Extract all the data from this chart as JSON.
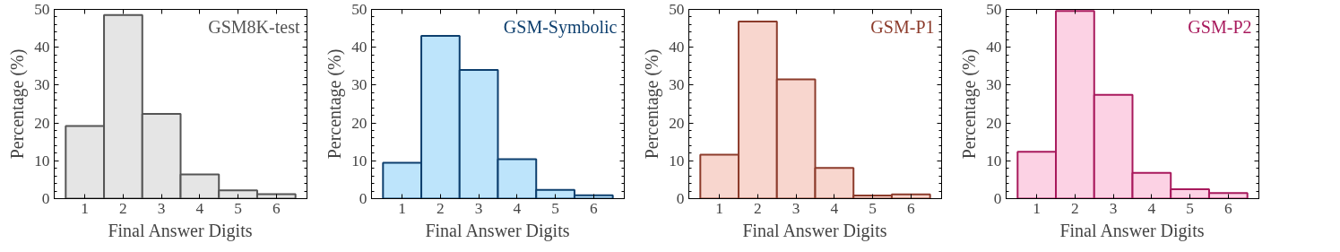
{
  "chart_data": [
    {
      "type": "bar",
      "title": "GSM8K-test",
      "xlabel": "Final Answer Digits",
      "ylabel": "Percentage (%)",
      "x": [
        1,
        2,
        3,
        4,
        5,
        6
      ],
      "xlim": [
        0.2,
        6.8
      ],
      "xticks": [
        1,
        2,
        3,
        4,
        5,
        6
      ],
      "ylim": [
        0,
        50
      ],
      "yticks": [
        0,
        10,
        20,
        30,
        40,
        50
      ],
      "grid": false,
      "series": [
        {
          "color": "#e5e5e5",
          "values": [
            19.2,
            48.5,
            22.4,
            6.4,
            2.2,
            1.2
          ]
        }
      ]
    },
    {
      "type": "bar",
      "title": "GSM-Symbolic",
      "xlabel": "Final Answer Digits",
      "ylabel": "Percentage (%)",
      "x": [
        1,
        2,
        3,
        4,
        5,
        6
      ],
      "xlim": [
        0.2,
        6.8
      ],
      "xticks": [
        1,
        2,
        3,
        4,
        5,
        6
      ],
      "ylim": [
        0,
        50
      ],
      "yticks": [
        0,
        10,
        20,
        30,
        40,
        50
      ],
      "grid": false,
      "series": [
        {
          "color": "#bde4fb",
          "values": [
            9.5,
            43.0,
            34.0,
            10.4,
            2.3,
            0.9
          ]
        }
      ]
    },
    {
      "type": "bar",
      "title": "GSM-P1",
      "xlabel": "Final Answer Digits",
      "ylabel": "Percentage (%)",
      "x": [
        1,
        2,
        3,
        4,
        5,
        6
      ],
      "xlim": [
        0.2,
        6.8
      ],
      "xticks": [
        1,
        2,
        3,
        4,
        5,
        6
      ],
      "ylim": [
        0,
        50
      ],
      "yticks": [
        0,
        10,
        20,
        30,
        40,
        50
      ],
      "grid": false,
      "series": [
        {
          "color": "#f8d6ce",
          "values": [
            11.6,
            46.8,
            31.5,
            8.1,
            0.8,
            1.1
          ]
        }
      ]
    },
    {
      "type": "bar",
      "title": "GSM-P2",
      "xlabel": "Final Answer Digits",
      "ylabel": "Percentage (%)",
      "x": [
        1,
        2,
        3,
        4,
        5,
        6
      ],
      "xlim": [
        0.2,
        6.8
      ],
      "xticks": [
        1,
        2,
        3,
        4,
        5,
        6
      ],
      "ylim": [
        0,
        50
      ],
      "yticks": [
        0,
        10,
        20,
        30,
        40,
        50
      ],
      "grid": false,
      "series": [
        {
          "color": "#fcd2e4",
          "values": [
            12.4,
            49.6,
            27.4,
            6.8,
            2.5,
            1.5
          ]
        }
      ]
    }
  ]
}
